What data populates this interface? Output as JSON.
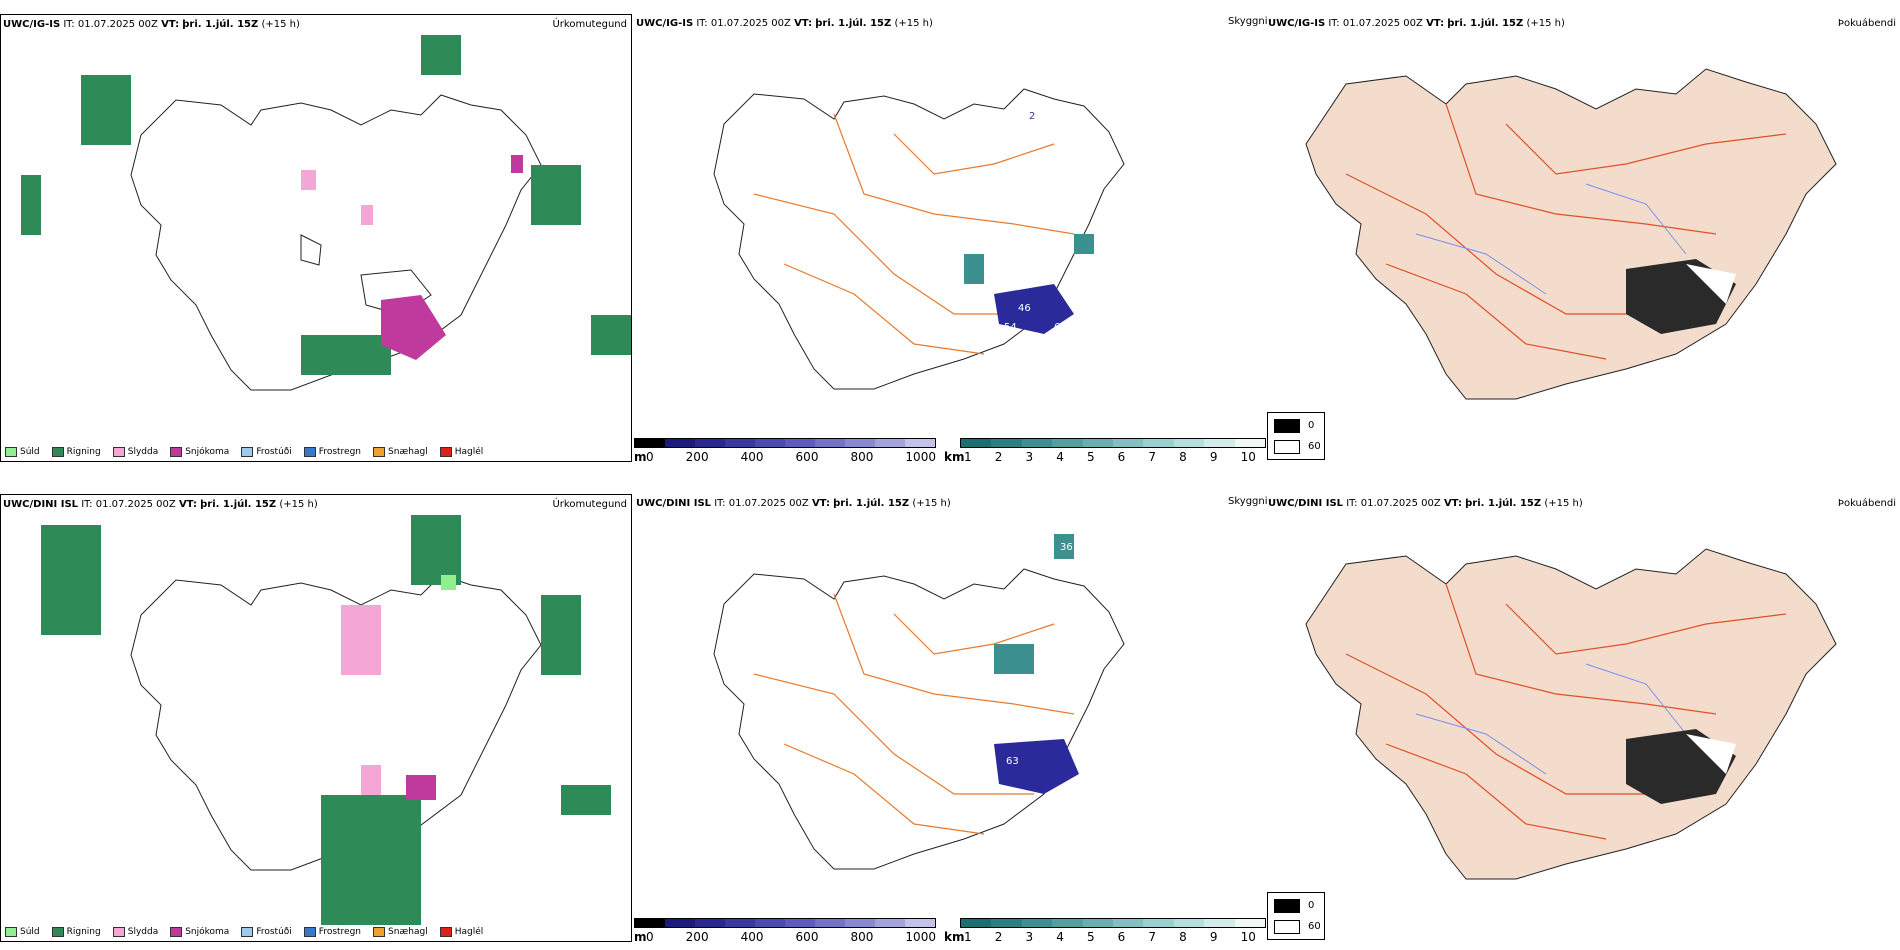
{
  "rows": [
    {
      "model": "UWC/IG-IS",
      "it_label": "IT:",
      "it_value": "01.07.2025 00Z",
      "vt_label": "VT:",
      "vt_value": "þri. 1.júl. 15Z",
      "lead": "(+15 h)"
    },
    {
      "model": "UWC/DINI ISL",
      "it_label": "IT:",
      "it_value": "01.07.2025 00Z",
      "vt_label": "VT:",
      "vt_value": "þri. 1.júl. 15Z",
      "lead": "(+15 h)"
    }
  ],
  "panel_titles": {
    "precip_type": "Úrkomutegund",
    "visibility": "Skyggni",
    "fog": "Þokuábendi"
  },
  "precip_legend": [
    {
      "label": "Súld",
      "color": "#90ee90"
    },
    {
      "label": "Rigning",
      "color": "#2e8b57"
    },
    {
      "label": "Slydda",
      "color": "#f4a6d7"
    },
    {
      "label": "Snjókoma",
      "color": "#c0399c"
    },
    {
      "label": "Frostúði",
      "color": "#9ccbf2"
    },
    {
      "label": "Frostregn",
      "color": "#3a78c9"
    },
    {
      "label": "Snæhagl",
      "color": "#f0a030"
    },
    {
      "label": "Haglél",
      "color": "#e02020"
    }
  ],
  "cloudbase_bar": {
    "unit": "m",
    "ticks": [
      "0",
      "200",
      "400",
      "600",
      "800",
      "1000"
    ],
    "colors": [
      "#000000",
      "#1a1a7a",
      "#28288f",
      "#3838a0",
      "#4a4aaf",
      "#5c5cbc",
      "#7272c8",
      "#8989d3",
      "#a3a3de",
      "#c2c2ea"
    ]
  },
  "visibility_bar": {
    "unit": "km",
    "ticks": [
      "1",
      "2",
      "3",
      "4",
      "5",
      "6",
      "7",
      "8",
      "9",
      "10"
    ],
    "colors": [
      "#1a7070",
      "#2a8080",
      "#3d9090",
      "#52a0a0",
      "#68b0b0",
      "#80c0c0",
      "#9ad0d0",
      "#b5dede",
      "#d2ecec",
      "#f0f8f8"
    ]
  },
  "fog_legend": {
    "low": "0",
    "high": "60"
  },
  "map_labels_top": [
    "46",
    "54",
    "69",
    "2"
  ],
  "map_labels_bottom": [
    "63",
    "36"
  ],
  "colors": {
    "land_fog": "#f3dccb",
    "roads": "#e87a2c",
    "rivers": "#7a8ef0"
  }
}
